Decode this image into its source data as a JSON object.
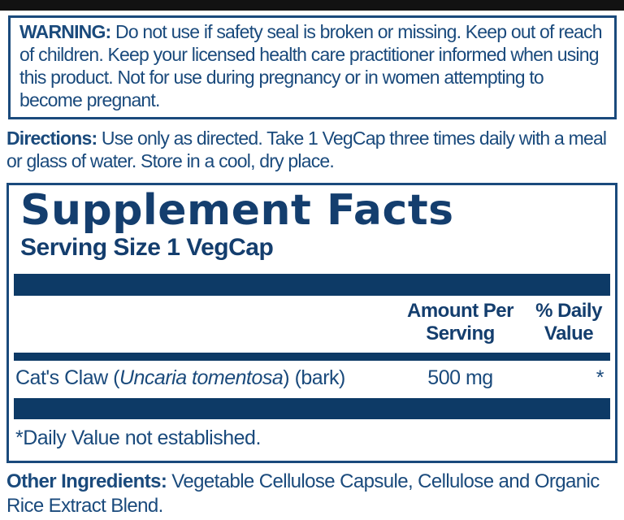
{
  "warning": {
    "label": "WARNING:",
    "text": " Do not use if safety seal is broken or missing. Keep out of reach of children. Keep your licensed health care practitioner informed when using this product. Not for use during pregnancy or in women attempting to become pregnant."
  },
  "directions": {
    "label": "Directions:",
    "text": " Use only as directed. Take 1 VegCap three times daily with a meal or glass of water. Store in a cool, dry place."
  },
  "supplement_facts": {
    "title": "Supplement Facts",
    "serving_size": "Serving Size 1 VegCap",
    "header": {
      "amount_line1": "Amount Per",
      "amount_line2": "Serving",
      "dv_line1": "% Daily",
      "dv_line2": "Value"
    },
    "rows": [
      {
        "name_prefix": "Cat's Claw (",
        "name_species": "Uncaria tomentosa",
        "name_suffix": ") (bark)",
        "amount": "500 mg",
        "daily_value": "*"
      }
    ],
    "footnote": "*Daily Value not established."
  },
  "other_ingredients": {
    "label": "Other Ingredients:",
    "text": " Vegetable Cellulose Capsule, Cellulose and Organic Rice Extract Blend."
  },
  "colors": {
    "navy_text": "#1a4a7c",
    "navy_dark": "#143e6e",
    "bar_navy": "#0d3a66",
    "black_bar": "#121212",
    "background": "#ffffff"
  }
}
